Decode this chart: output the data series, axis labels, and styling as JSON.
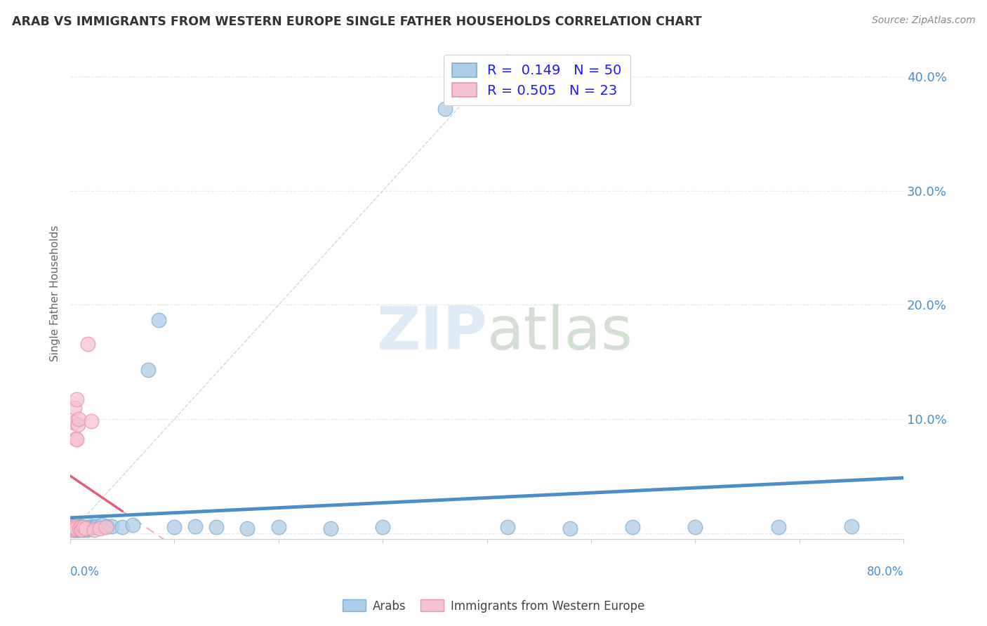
{
  "title": "ARAB VS IMMIGRANTS FROM WESTERN EUROPE SINGLE FATHER HOUSEHOLDS CORRELATION CHART",
  "source": "Source: ZipAtlas.com",
  "ylabel": "Single Father Households",
  "xlim": [
    0.0,
    0.8
  ],
  "ylim": [
    -0.005,
    0.425
  ],
  "yticks": [
    0.0,
    0.1,
    0.2,
    0.3,
    0.4
  ],
  "ytick_labels": [
    "",
    "10.0%",
    "20.0%",
    "30.0%",
    "40.0%"
  ],
  "xticks": [
    0.0,
    0.1,
    0.2,
    0.3,
    0.4,
    0.5,
    0.6,
    0.7,
    0.8
  ],
  "arab_color": "#aecde8",
  "arab_edge_color": "#7bafd4",
  "immigrant_color": "#f5c2d0",
  "immigrant_edge_color": "#e895b0",
  "blue_line_color": "#4b8ec8",
  "pink_line_color": "#e0607a",
  "ref_line_color": "#cccccc",
  "arab_R": 0.149,
  "arab_N": 50,
  "immigrant_R": 0.505,
  "immigrant_N": 23,
  "background_color": "#ffffff",
  "grid_color": "#e8e8e8",
  "title_color": "#333333",
  "source_color": "#888888",
  "ylabel_color": "#666666",
  "tick_label_color": "#4b8ec8",
  "legend_label_color": "#1a1aff",
  "bottom_legend_color": "#444444",
  "arab_x": [
    0.001,
    0.002,
    0.002,
    0.003,
    0.003,
    0.004,
    0.004,
    0.005,
    0.005,
    0.006,
    0.006,
    0.007,
    0.007,
    0.008,
    0.008,
    0.009,
    0.01,
    0.01,
    0.011,
    0.012,
    0.013,
    0.014,
    0.015,
    0.016,
    0.017,
    0.018,
    0.02,
    0.022,
    0.025,
    0.03,
    0.035,
    0.04,
    0.05,
    0.06,
    0.075,
    0.085,
    0.1,
    0.12,
    0.14,
    0.17,
    0.2,
    0.25,
    0.3,
    0.36,
    0.42,
    0.48,
    0.54,
    0.6,
    0.68,
    0.75
  ],
  "arab_y": [
    0.005,
    0.004,
    0.003,
    0.005,
    0.004,
    0.003,
    0.005,
    0.004,
    0.003,
    0.005,
    0.004,
    0.003,
    0.005,
    0.004,
    0.003,
    0.005,
    0.004,
    0.006,
    0.005,
    0.004,
    0.003,
    0.005,
    0.004,
    0.003,
    0.005,
    0.004,
    0.006,
    0.005,
    0.006,
    0.007,
    0.006,
    0.006,
    0.005,
    0.007,
    0.143,
    0.187,
    0.005,
    0.006,
    0.005,
    0.004,
    0.005,
    0.004,
    0.005,
    0.372,
    0.005,
    0.004,
    0.005,
    0.005,
    0.005,
    0.006
  ],
  "immigrant_x": [
    0.001,
    0.002,
    0.002,
    0.003,
    0.003,
    0.004,
    0.004,
    0.005,
    0.005,
    0.006,
    0.006,
    0.007,
    0.008,
    0.009,
    0.01,
    0.011,
    0.013,
    0.015,
    0.017,
    0.02,
    0.023,
    0.028,
    0.034
  ],
  "immigrant_y": [
    0.004,
    0.005,
    0.003,
    0.097,
    0.004,
    0.005,
    0.11,
    0.004,
    0.083,
    0.117,
    0.082,
    0.095,
    0.1,
    0.004,
    0.005,
    0.003,
    0.005,
    0.004,
    0.166,
    0.098,
    0.003,
    0.004,
    0.005
  ]
}
